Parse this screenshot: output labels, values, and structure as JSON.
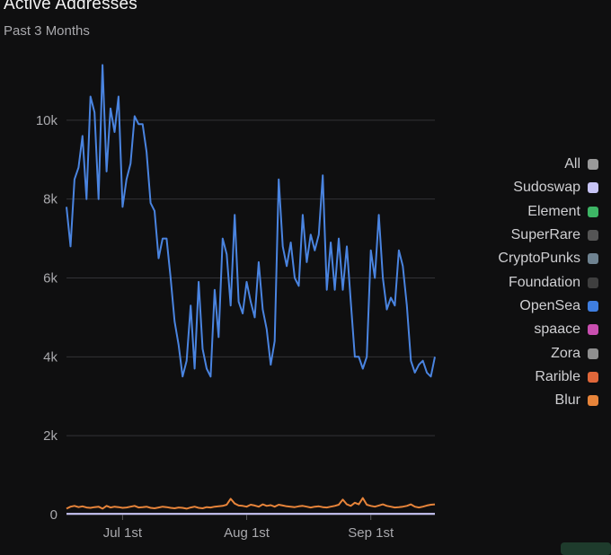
{
  "header": {
    "title": "Active Addresses",
    "subtitle": "Past 3 Months"
  },
  "legend": [
    {
      "label": "All",
      "color": "#9a9a9a"
    },
    {
      "label": "Sudoswap",
      "color": "#c7c4f5"
    },
    {
      "label": "Element",
      "color": "#3db565"
    },
    {
      "label": "SuperRare",
      "color": "#555555"
    },
    {
      "label": "CryptoPunks",
      "color": "#6f8391"
    },
    {
      "label": "Foundation",
      "color": "#3f3f3f"
    },
    {
      "label": "OpenSea",
      "color": "#3f7ee0"
    },
    {
      "label": "spaace",
      "color": "#c94fb0"
    },
    {
      "label": "Zora",
      "color": "#8f8f8f"
    },
    {
      "label": "Rarible",
      "color": "#e0673a"
    },
    {
      "label": "Blur",
      "color": "#e7843a"
    }
  ],
  "chart_data": {
    "type": "line",
    "title": "Active Addresses",
    "subtitle": "Past 3 Months",
    "ylim": [
      0,
      12000
    ],
    "yticks": [
      0,
      2000,
      4000,
      6000,
      8000,
      10000
    ],
    "ytick_labels": [
      "0",
      "2k",
      "4k",
      "6k",
      "8k",
      "10k"
    ],
    "xticks": [
      {
        "label": "Jul 1st",
        "index": 14
      },
      {
        "label": "Aug 1st",
        "index": 45
      },
      {
        "label": "Sep 1st",
        "index": 76
      }
    ],
    "grid": true,
    "legend_position": "right",
    "series": [
      {
        "name": "OpenSea",
        "color": "#4a84e0",
        "values": [
          7800,
          6800,
          8500,
          8800,
          9600,
          8000,
          10600,
          10200,
          8000,
          11400,
          8700,
          10300,
          9700,
          10600,
          7800,
          8500,
          8900,
          10100,
          9900,
          9900,
          9200,
          7900,
          7700,
          6500,
          7000,
          7000,
          6000,
          4900,
          4300,
          3500,
          3900,
          5300,
          3700,
          5900,
          4200,
          3700,
          3500,
          5700,
          4500,
          7000,
          6600,
          5300,
          7600,
          5400,
          5100,
          5900,
          5400,
          5000,
          6400,
          5200,
          4700,
          3800,
          4400,
          8500,
          6800,
          6300,
          6900,
          6000,
          5800,
          7600,
          6400,
          7100,
          6700,
          7100,
          8600,
          5700,
          6900,
          5700,
          7000,
          5700,
          6800,
          5400,
          4000,
          4000,
          3700,
          4000,
          6700,
          6000,
          7600,
          6000,
          5200,
          5500,
          5300,
          6700,
          6300,
          5300,
          3900,
          3600,
          3800,
          3900,
          3600,
          3500,
          4000
        ]
      },
      {
        "name": "Blur",
        "color": "#e7843a",
        "values": [
          150,
          200,
          220,
          190,
          210,
          180,
          170,
          190,
          200,
          150,
          220,
          180,
          200,
          190,
          170,
          180,
          200,
          220,
          180,
          190,
          200,
          170,
          160,
          180,
          200,
          190,
          170,
          160,
          180,
          170,
          150,
          180,
          200,
          170,
          160,
          190,
          180,
          200,
          210,
          220,
          250,
          400,
          280,
          230,
          220,
          200,
          250,
          230,
          200,
          260,
          220,
          240,
          200,
          250,
          230,
          210,
          200,
          190,
          210,
          220,
          200,
          180,
          200,
          210,
          190,
          180,
          200,
          220,
          250,
          380,
          260,
          220,
          300,
          260,
          420,
          250,
          220,
          200,
          230,
          260,
          220,
          200,
          180,
          190,
          200,
          220,
          260,
          200,
          180,
          200,
          230,
          250,
          260
        ]
      },
      {
        "name": "Sudoswap",
        "color": "#c7c4f5",
        "values": [
          20,
          20,
          20,
          20,
          20,
          20,
          20,
          20,
          20,
          20,
          20,
          20,
          20,
          20,
          20,
          20,
          20,
          20,
          20,
          20,
          20,
          20,
          20,
          20,
          20,
          20,
          20,
          20,
          20,
          20,
          20,
          20,
          20,
          20,
          20,
          20,
          20,
          20,
          20,
          20,
          20,
          20,
          20,
          20,
          20,
          20,
          20,
          20,
          20,
          20,
          20,
          20,
          20,
          20,
          20,
          20,
          20,
          20,
          20,
          20,
          20,
          20,
          20,
          20,
          20,
          20,
          20,
          20,
          20,
          20,
          20,
          20,
          20,
          20,
          20,
          20,
          20,
          20,
          20,
          20,
          20,
          20,
          20,
          20,
          20,
          20,
          20,
          20,
          20,
          20,
          20,
          20,
          20
        ]
      }
    ]
  }
}
